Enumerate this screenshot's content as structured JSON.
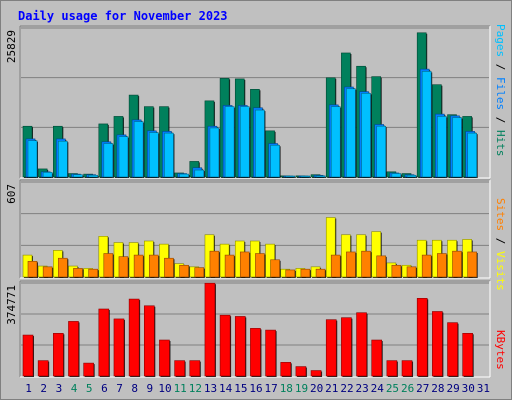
{
  "title": "Daily usage for November 2023",
  "colors": {
    "hits": "#00805c",
    "files": "#0080ff",
    "pages": "#00c0ff",
    "visits": "#ffff00",
    "sites": "#ff8000",
    "kbytes": "#ff0000",
    "weekend_day": "#00805c",
    "weekday": "#000080",
    "background": "#c0c0c0"
  },
  "right_labels": {
    "top": [
      {
        "text": "Pages",
        "color": "#00c0ff"
      },
      {
        "text": " / ",
        "color": "#000000"
      },
      {
        "text": "Files",
        "color": "#0080ff"
      },
      {
        "text": " / ",
        "color": "#000000"
      },
      {
        "text": "Hits",
        "color": "#00805c"
      }
    ],
    "middle": [
      {
        "text": "Sites",
        "color": "#ff8000"
      },
      {
        "text": " / ",
        "color": "#000000"
      },
      {
        "text": "Visits",
        "color": "#ffff00"
      }
    ],
    "bottom": [
      {
        "text": "KBytes",
        "color": "#ff0000"
      }
    ]
  },
  "chart_data": {
    "type": "bar",
    "title": "Daily usage for November 2023",
    "days": [
      "1",
      "2",
      "3",
      "4",
      "5",
      "6",
      "7",
      "8",
      "9",
      "10",
      "11",
      "12",
      "13",
      "14",
      "15",
      "16",
      "17",
      "18",
      "19",
      "20",
      "21",
      "22",
      "23",
      "24",
      "25",
      "26",
      "27",
      "28",
      "29",
      "30",
      "31"
    ],
    "weekend_days": [
      "4",
      "5",
      "11",
      "12",
      "18",
      "19",
      "25",
      "26"
    ],
    "panels": [
      {
        "name": "hits-files-pages",
        "max_label": "25829",
        "ylim": [
          0,
          25829
        ],
        "series": [
          {
            "name": "Hits",
            "color": "#00805c",
            "values": [
              8800,
              1400,
              8800,
              600,
              500,
              9200,
              10500,
              14200,
              12200,
              12200,
              700,
              2700,
              13200,
              17100,
              17000,
              15200,
              8000,
              200,
              200,
              400,
              17200,
              21500,
              19200,
              17400,
              900,
              600,
              25000,
              16000,
              10800,
              10500,
              0
            ]
          },
          {
            "name": "Files",
            "color": "#0080ff",
            "values": [
              6600,
              900,
              6600,
              500,
              400,
              6100,
              7300,
              9900,
              8000,
              7900,
              600,
              1600,
              8800,
              12400,
              12400,
              12000,
              5800,
              150,
              150,
              300,
              12500,
              15600,
              14800,
              9100,
              700,
              400,
              18700,
              10900,
              10600,
              7900,
              0
            ]
          },
          {
            "name": "Pages",
            "color": "#00c0ff",
            "values": [
              6300,
              800,
              6200,
              400,
              300,
              5800,
              7000,
              9600,
              7700,
              7600,
              500,
              1200,
              8500,
              12200,
              12200,
              11600,
              5500,
              100,
              100,
              200,
              12200,
              15300,
              14500,
              8800,
              600,
              300,
              18300,
              10500,
              10300,
              7600,
              0
            ]
          }
        ]
      },
      {
        "name": "visits-sites",
        "max_label": "607",
        "ylim": [
          0,
          607
        ],
        "series": [
          {
            "name": "Visits",
            "color": "#ffff00",
            "values": [
              140,
              70,
              170,
              70,
              55,
              260,
              220,
              220,
              230,
              210,
              85,
              65,
              270,
              210,
              230,
              230,
              210,
              50,
              55,
              65,
              380,
              270,
              270,
              290,
              90,
              75,
              235,
              235,
              235,
              240,
              0
            ]
          },
          {
            "name": "Sites",
            "color": "#ff8000",
            "values": [
              100,
              65,
              120,
              55,
              50,
              150,
              130,
              140,
              140,
              120,
              75,
              60,
              165,
              140,
              160,
              150,
              110,
              45,
              50,
              50,
              140,
              160,
              165,
              135,
              75,
              65,
              140,
              150,
              165,
              160,
              0
            ]
          }
        ]
      },
      {
        "name": "kbytes",
        "max_label": "374771",
        "ylim": [
          0,
          374771
        ],
        "series": [
          {
            "name": "KBytes",
            "color": "#ff0000",
            "values": [
              165000,
              62000,
              172000,
              220000,
              52000,
              270000,
              230000,
              310000,
              283000,
              145000,
              62000,
              62000,
              374000,
              245000,
              240000,
              192000,
              185000,
              55000,
              38000,
              22000,
              227000,
              235000,
              255000,
              145000,
              62000,
              62000,
              313000,
              260000,
              215000,
              172000,
              0
            ]
          }
        ]
      }
    ]
  }
}
